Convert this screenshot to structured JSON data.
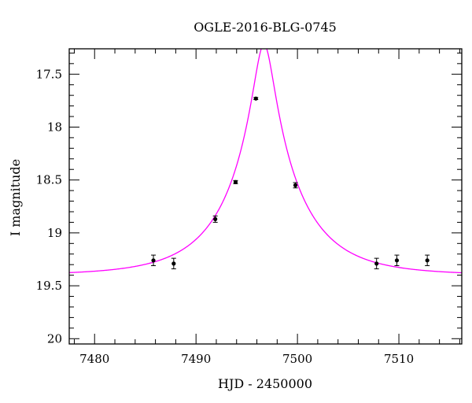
{
  "chart_data": {
    "type": "scatter",
    "title": "OGLE-2016-BLG-0745",
    "xlabel": "HJD - 2450000",
    "ylabel": "I magnitude",
    "xlim": [
      7477.5,
      7516.2
    ],
    "ylim": [
      20.05,
      17.26
    ],
    "y_inverted": true,
    "grid": false,
    "x_major_ticks": [
      7480,
      7490,
      7500,
      7510
    ],
    "x_minor_step": 2,
    "y_major_ticks": [
      17.5,
      18,
      18.5,
      19,
      19.5,
      20
    ],
    "y_major_tick_labels": [
      "17.5",
      "18",
      "18.5",
      "19",
      "19.5",
      "20"
    ],
    "y_minor_step": 0.1,
    "colors": {
      "model": "#ff00ff",
      "points": "#000000"
    },
    "series": [
      {
        "points": [
          {
            "x": 7485.8,
            "y": 19.26,
            "err": 0.05
          },
          {
            "x": 7487.8,
            "y": 19.29,
            "err": 0.05
          },
          {
            "x": 7491.9,
            "y": 18.87,
            "err": 0.03
          },
          {
            "x": 7493.9,
            "y": 18.52,
            "err": 0.015
          },
          {
            "x": 7495.9,
            "y": 17.73,
            "err": 0.01
          },
          {
            "x": 7499.8,
            "y": 18.55,
            "err": 0.025
          },
          {
            "x": 7507.8,
            "y": 19.29,
            "err": 0.05
          },
          {
            "x": 7509.8,
            "y": 19.26,
            "err": 0.05
          },
          {
            "x": 7512.8,
            "y": 19.26,
            "err": 0.05
          }
        ]
      }
    ],
    "model": {
      "type": "microlensing-pspl",
      "t0": 7496.7,
      "tE": 7.0,
      "u0": 0.135,
      "baseline": 19.4
    }
  }
}
